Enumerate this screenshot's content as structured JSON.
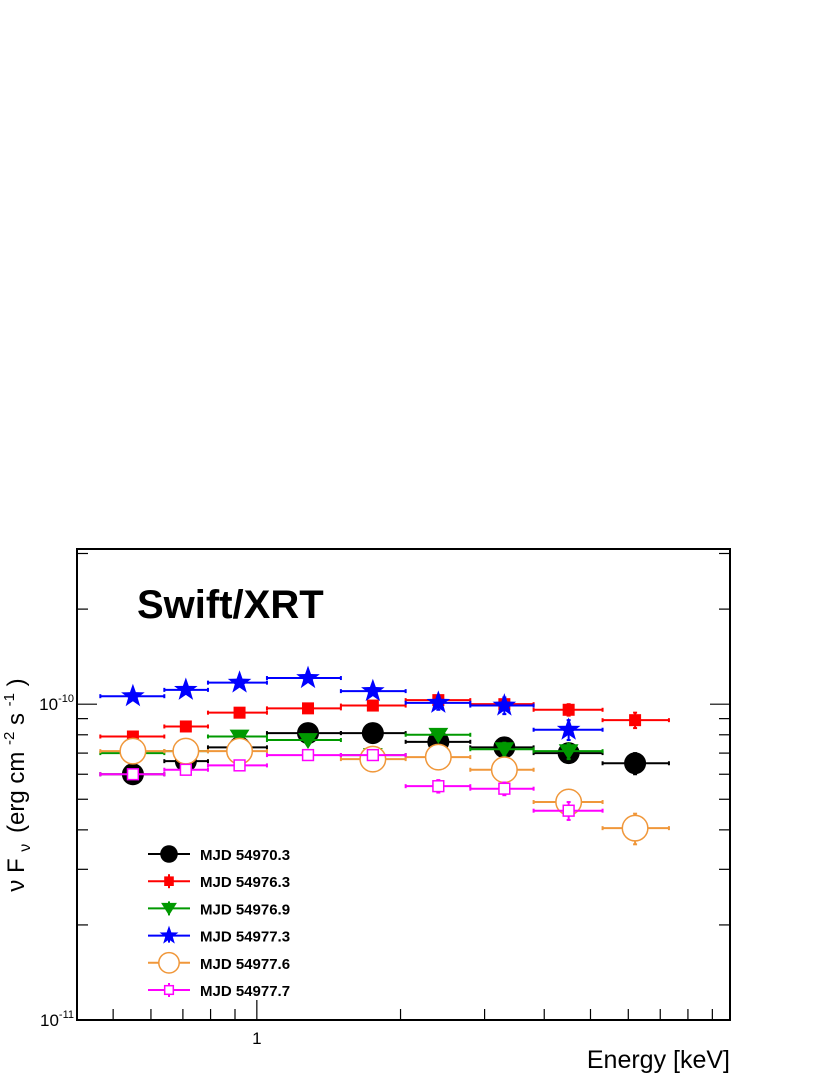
{
  "chart_data": {
    "type": "scatter",
    "annotation": "Swift/XRT",
    "xlabel": "Energy [keV]",
    "ylabel": {
      "main": "ν F",
      "sub": "ν",
      "unit_prefix": "(erg cm",
      "exp1": "-2",
      "mid": " s",
      "exp2": "-1",
      "close": ")"
    },
    "xscale": "log",
    "yscale": "log",
    "xlim": [
      0.42,
      9.8
    ],
    "ylim": [
      1e-11,
      3.1e-10
    ],
    "x_tick_labels": [
      {
        "value": 1,
        "text": "1"
      }
    ],
    "y_tick_labels": [
      {
        "value": 1e-10,
        "base": "10",
        "exp": "-10"
      },
      {
        "value": 1e-11,
        "base": "10",
        "exp": "-11"
      }
    ],
    "grid": false,
    "legend_position": "bottom-left",
    "series": [
      {
        "name": "MJD 54970.3",
        "color": "#000000",
        "marker": "filled-circle",
        "points": [
          {
            "x": 0.55,
            "xlo": 0.47,
            "xhi": 0.64,
            "y": 6e-11,
            "yerr": 2e-12
          },
          {
            "x": 0.71,
            "xlo": 0.64,
            "xhi": 0.79,
            "y": 6.6e-11,
            "yerr": 2.5e-12
          },
          {
            "x": 0.92,
            "xlo": 0.79,
            "xhi": 1.05,
            "y": 7.3e-11,
            "yerr": 2.5e-12
          },
          {
            "x": 1.28,
            "xlo": 1.05,
            "xhi": 1.5,
            "y": 8.1e-11,
            "yerr": 2e-12
          },
          {
            "x": 1.75,
            "xlo": 1.5,
            "xhi": 2.05,
            "y": 8.1e-11,
            "yerr": 2e-12
          },
          {
            "x": 2.4,
            "xlo": 2.05,
            "xhi": 2.8,
            "y": 7.6e-11,
            "yerr": 3e-12
          },
          {
            "x": 3.3,
            "xlo": 2.8,
            "xhi": 3.8,
            "y": 7.3e-11,
            "yerr": 3.5e-12
          },
          {
            "x": 4.5,
            "xlo": 3.8,
            "xhi": 5.3,
            "y": 7e-11,
            "yerr": 4e-12
          },
          {
            "x": 6.2,
            "xlo": 5.3,
            "xhi": 7.3,
            "y": 6.5e-11,
            "yerr": 5e-12
          }
        ]
      },
      {
        "name": "MJD 54976.3",
        "color": "#ff0000",
        "marker": "filled-square",
        "points": [
          {
            "x": 0.55,
            "xlo": 0.47,
            "xhi": 0.64,
            "y": 7.9e-11,
            "yerr": 2e-12
          },
          {
            "x": 0.71,
            "xlo": 0.64,
            "xhi": 0.79,
            "y": 8.5e-11,
            "yerr": 2.5e-12
          },
          {
            "x": 0.92,
            "xlo": 0.79,
            "xhi": 1.05,
            "y": 9.4e-11,
            "yerr": 2.5e-12
          },
          {
            "x": 1.28,
            "xlo": 1.05,
            "xhi": 1.5,
            "y": 9.7e-11,
            "yerr": 2e-12
          },
          {
            "x": 1.75,
            "xlo": 1.5,
            "xhi": 2.05,
            "y": 9.9e-11,
            "yerr": 2.5e-12
          },
          {
            "x": 2.4,
            "xlo": 2.05,
            "xhi": 2.8,
            "y": 1.03e-10,
            "yerr": 3e-12
          },
          {
            "x": 3.3,
            "xlo": 2.8,
            "xhi": 3.8,
            "y": 1e-10,
            "yerr": 3.5e-12
          },
          {
            "x": 4.5,
            "xlo": 3.8,
            "xhi": 5.3,
            "y": 9.6e-11,
            "yerr": 4e-12
          },
          {
            "x": 6.2,
            "xlo": 5.3,
            "xhi": 7.3,
            "y": 8.9e-11,
            "yerr": 5e-12
          }
        ]
      },
      {
        "name": "MJD 54976.9",
        "color": "#009900",
        "marker": "filled-triangle-down",
        "points": [
          {
            "x": 0.55,
            "xlo": 0.47,
            "xhi": 0.64,
            "y": 7e-11,
            "yerr": 2e-12
          },
          {
            "x": 0.71,
            "xlo": 0.64,
            "xhi": 0.79,
            "y": 7.1e-11,
            "yerr": 2.5e-12
          },
          {
            "x": 0.92,
            "xlo": 0.79,
            "xhi": 1.05,
            "y": 7.9e-11,
            "yerr": 2.5e-12
          },
          {
            "x": 1.28,
            "xlo": 1.05,
            "xhi": 1.5,
            "y": 7.7e-11,
            "yerr": 2e-12
          },
          {
            "x": 1.75,
            "xlo": 1.5,
            "xhi": 2.05,
            "y": 6.9e-11,
            "yerr": 2e-12
          },
          {
            "x": 2.4,
            "xlo": 2.05,
            "xhi": 2.8,
            "y": 8e-11,
            "yerr": 3e-12
          },
          {
            "x": 3.3,
            "xlo": 2.8,
            "xhi": 3.8,
            "y": 7.2e-11,
            "yerr": 3.5e-12
          },
          {
            "x": 4.5,
            "xlo": 3.8,
            "xhi": 5.3,
            "y": 7.1e-11,
            "yerr": 4e-12
          }
        ]
      },
      {
        "name": "MJD 54977.3",
        "color": "#0000ff",
        "marker": "star",
        "points": [
          {
            "x": 0.55,
            "xlo": 0.47,
            "xhi": 0.64,
            "y": 1.06e-10,
            "yerr": 3e-12
          },
          {
            "x": 0.71,
            "xlo": 0.64,
            "xhi": 0.79,
            "y": 1.11e-10,
            "yerr": 3e-12
          },
          {
            "x": 0.92,
            "xlo": 0.79,
            "xhi": 1.05,
            "y": 1.17e-10,
            "yerr": 3e-12
          },
          {
            "x": 1.28,
            "xlo": 1.05,
            "xhi": 1.5,
            "y": 1.21e-10,
            "yerr": 3e-12
          },
          {
            "x": 1.75,
            "xlo": 1.5,
            "xhi": 2.05,
            "y": 1.1e-10,
            "yerr": 3e-12
          },
          {
            "x": 2.4,
            "xlo": 2.05,
            "xhi": 2.8,
            "y": 1.01e-10,
            "yerr": 5e-12
          },
          {
            "x": 3.3,
            "xlo": 2.8,
            "xhi": 3.8,
            "y": 9.9e-11,
            "yerr": 6e-12
          },
          {
            "x": 4.5,
            "xlo": 3.8,
            "xhi": 5.3,
            "y": 8.3e-11,
            "yerr": 6e-12
          }
        ]
      },
      {
        "name": "MJD 54977.6",
        "color": "#f0973a",
        "marker": "open-circle",
        "points": [
          {
            "x": 0.55,
            "xlo": 0.47,
            "xhi": 0.64,
            "y": 7.1e-11,
            "yerr": 1.5e-12
          },
          {
            "x": 0.71,
            "xlo": 0.64,
            "xhi": 0.79,
            "y": 7.1e-11,
            "yerr": 1.5e-12
          },
          {
            "x": 0.92,
            "xlo": 0.79,
            "xhi": 1.05,
            "y": 7.1e-11,
            "yerr": 1.5e-12
          },
          {
            "x": 1.75,
            "xlo": 1.5,
            "xhi": 2.05,
            "y": 6.7e-11,
            "yerr": 2e-12
          },
          {
            "x": 2.4,
            "xlo": 2.05,
            "xhi": 2.8,
            "y": 6.8e-11,
            "yerr": 2e-12
          },
          {
            "x": 3.3,
            "xlo": 2.8,
            "xhi": 3.8,
            "y": 6.2e-11,
            "yerr": 3e-12
          },
          {
            "x": 4.5,
            "xlo": 3.8,
            "xhi": 5.3,
            "y": 4.9e-11,
            "yerr": 3e-12
          },
          {
            "x": 6.2,
            "xlo": 5.3,
            "xhi": 7.3,
            "y": 4.05e-11,
            "yerr": 4.5e-12
          }
        ]
      },
      {
        "name": "MJD 54977.7",
        "color": "#ff00ff",
        "marker": "open-square",
        "points": [
          {
            "x": 0.55,
            "xlo": 0.47,
            "xhi": 0.64,
            "y": 6e-11,
            "yerr": 1.5e-12
          },
          {
            "x": 0.71,
            "xlo": 0.64,
            "xhi": 0.79,
            "y": 6.2e-11,
            "yerr": 1.5e-12
          },
          {
            "x": 0.92,
            "xlo": 0.79,
            "xhi": 1.05,
            "y": 6.4e-11,
            "yerr": 1.5e-12
          },
          {
            "x": 1.28,
            "xlo": 1.05,
            "xhi": 1.5,
            "y": 6.9e-11,
            "yerr": 1.5e-12
          },
          {
            "x": 1.75,
            "xlo": 1.5,
            "xhi": 2.05,
            "y": 6.9e-11,
            "yerr": 2e-12
          },
          {
            "x": 2.4,
            "xlo": 2.05,
            "xhi": 2.8,
            "y": 5.5e-11,
            "yerr": 2.5e-12
          },
          {
            "x": 3.3,
            "xlo": 2.8,
            "xhi": 3.8,
            "y": 5.4e-11,
            "yerr": 2.5e-12
          },
          {
            "x": 4.5,
            "xlo": 3.8,
            "xhi": 5.3,
            "y": 4.6e-11,
            "yerr": 3e-12
          }
        ]
      }
    ]
  }
}
